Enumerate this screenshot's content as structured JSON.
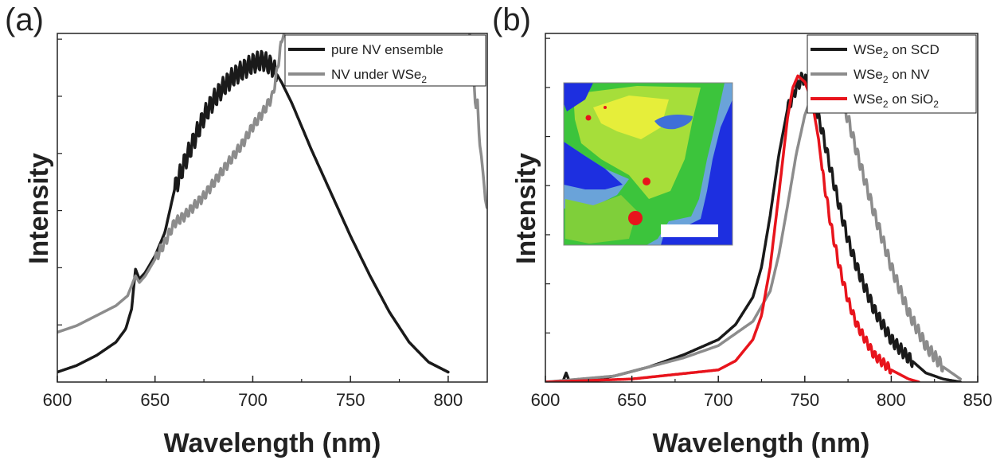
{
  "chart_data": [
    {
      "type": "line",
      "panel_label": "(a)",
      "xlabel": "Wavelength (nm)",
      "ylabel": "Intensity",
      "xlim": [
        600,
        820
      ],
      "ylim": [
        0,
        1.05
      ],
      "xticks": [
        "600",
        "650",
        "700",
        "750",
        "800"
      ],
      "legend_position": "top-right",
      "series": [
        {
          "name": "pure NV ensemble",
          "color": "#1a1a1a",
          "oscillation": {
            "start": 660,
            "end": 712,
            "amplitude": 0.03,
            "period": 2.2
          },
          "x": [
            600,
            610,
            620,
            630,
            635,
            638,
            640,
            642,
            645,
            650,
            655,
            660,
            665,
            670,
            675,
            680,
            685,
            690,
            695,
            700,
            705,
            710,
            715,
            720,
            730,
            740,
            750,
            760,
            770,
            780,
            790,
            800
          ],
          "y": [
            0.03,
            0.05,
            0.08,
            0.12,
            0.16,
            0.22,
            0.34,
            0.31,
            0.33,
            0.38,
            0.45,
            0.58,
            0.66,
            0.73,
            0.8,
            0.85,
            0.89,
            0.92,
            0.94,
            0.96,
            0.97,
            0.95,
            0.9,
            0.84,
            0.7,
            0.57,
            0.44,
            0.32,
            0.21,
            0.12,
            0.06,
            0.03
          ]
        },
        {
          "name": "NV under WSe2",
          "color": "#8c8c8c",
          "oscillation": {
            "start": 650,
            "end": 715,
            "amplitude": 0.015,
            "period": 2.2
          },
          "x": [
            600,
            610,
            620,
            630,
            636,
            640,
            642,
            645,
            650,
            655,
            660,
            665,
            670,
            675,
            680,
            685,
            690,
            695,
            700,
            705,
            710,
            712,
            714,
            716
          ],
          "y": [
            0.15,
            0.17,
            0.2,
            0.23,
            0.26,
            0.32,
            0.3,
            0.32,
            0.37,
            0.42,
            0.48,
            0.5,
            0.53,
            0.56,
            0.6,
            0.64,
            0.68,
            0.72,
            0.77,
            0.81,
            0.86,
            0.92,
            1.0,
            1.05
          ]
        },
        {
          "name": "",
          "color": "#8c8c8c",
          "x": [
            811,
            812,
            813,
            814,
            815,
            816,
            817,
            818,
            819,
            820
          ],
          "y": [
            1.05,
            0.9,
            0.93,
            0.82,
            0.85,
            0.72,
            0.68,
            0.62,
            0.55,
            0.52
          ]
        }
      ],
      "legend": [
        {
          "prefix": "pure NV ensemble",
          "sub": "",
          "suffix": "",
          "color": "#1a1a1a"
        },
        {
          "prefix": "NV under WSe",
          "sub": "2",
          "suffix": "",
          "color": "#8c8c8c"
        }
      ]
    },
    {
      "type": "line",
      "panel_label": "(b)",
      "xlabel": "Wavelength (nm)",
      "ylabel": "Intensity",
      "xlim": [
        600,
        850
      ],
      "ylim": [
        0,
        1.15
      ],
      "xticks": [
        "600",
        "650",
        "700",
        "750",
        "800",
        "850"
      ],
      "legend_position": "top-right",
      "inset": "PL intensity map with scale bar",
      "series": [
        {
          "name": "WSe2 on SCD",
          "color": "#1a1a1a",
          "oscillation": {
            "start": 740,
            "end": 812,
            "amplitude": 0.02,
            "period": 2.5
          },
          "x": [
            600,
            610,
            612,
            614,
            620,
            640,
            660,
            680,
            700,
            710,
            720,
            725,
            730,
            735,
            740,
            745,
            748,
            750,
            752,
            755,
            760,
            765,
            770,
            775,
            780,
            790,
            800,
            810,
            820,
            830,
            840
          ],
          "y": [
            0.0,
            0.0,
            0.03,
            0.0,
            0.0,
            0.02,
            0.05,
            0.09,
            0.14,
            0.19,
            0.28,
            0.38,
            0.55,
            0.75,
            0.9,
            0.97,
            1.0,
            1.0,
            0.98,
            0.93,
            0.83,
            0.7,
            0.58,
            0.47,
            0.38,
            0.24,
            0.14,
            0.08,
            0.03,
            0.01,
            0.0
          ]
        },
        {
          "name": "WSe2 on NV",
          "color": "#8c8c8c",
          "oscillation": {
            "start": 760,
            "end": 830,
            "amplitude": 0.02,
            "period": 2.5
          },
          "x": [
            600,
            640,
            660,
            680,
            700,
            720,
            730,
            735,
            740,
            745,
            750,
            755,
            760,
            765,
            770,
            775,
            780,
            790,
            800,
            810,
            820,
            830,
            840
          ],
          "y": [
            0.0,
            0.02,
            0.05,
            0.08,
            0.12,
            0.2,
            0.3,
            0.42,
            0.58,
            0.75,
            0.88,
            0.96,
            1.0,
            0.99,
            0.94,
            0.87,
            0.76,
            0.56,
            0.38,
            0.23,
            0.12,
            0.05,
            0.01
          ]
        },
        {
          "name": "WSe2 on SiO2",
          "color": "#e8141c",
          "oscillation": {
            "start": 760,
            "end": 800,
            "amplitude": 0.015,
            "period": 2.5
          },
          "x": [
            600,
            650,
            700,
            710,
            720,
            725,
            730,
            735,
            740,
            743,
            746,
            748,
            750,
            752,
            755,
            758,
            760,
            765,
            770,
            775,
            780,
            790,
            800,
            810,
            816
          ],
          "y": [
            0.0,
            0.01,
            0.04,
            0.07,
            0.14,
            0.22,
            0.38,
            0.62,
            0.87,
            0.97,
            1.01,
            1.0,
            0.99,
            0.96,
            0.9,
            0.8,
            0.7,
            0.52,
            0.38,
            0.27,
            0.19,
            0.09,
            0.04,
            0.01,
            0.0
          ]
        }
      ],
      "legend": [
        {
          "prefix": "WSe",
          "sub": "2",
          "suffix": " on SCD",
          "color": "#1a1a1a"
        },
        {
          "prefix": "WSe",
          "sub": "2",
          "suffix": " on NV",
          "color": "#8c8c8c"
        },
        {
          "prefix": "WSe",
          "sub": "2",
          "suffix": " on SiO",
          "sub2": "2",
          "color": "#e8141c"
        }
      ]
    }
  ]
}
